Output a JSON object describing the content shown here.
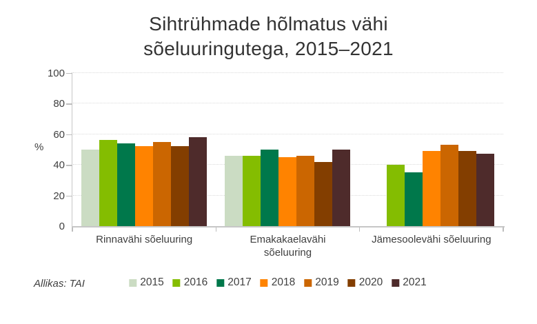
{
  "header": {
    "title_line1": "Sihtrühmade hõlmatus vähi",
    "title_line2": "sõeluuringutega, 2015–2021"
  },
  "source": "Allikas: TAI",
  "x_labels": [
    "Rinnavähi sõeluuring",
    "Emakakaelavähi\nsõeluuring",
    "Jämesoolevähi sõeluuring"
  ],
  "chart_data": {
    "type": "bar",
    "title": "Sihtrühmade hõlmatus vähi sõeluuringutega, 2015–2021",
    "xlabel": "",
    "ylabel": "%",
    "ylim": [
      0,
      100
    ],
    "yticks": [
      0,
      20,
      40,
      60,
      80,
      100
    ],
    "grid": "horizontal-dotted",
    "legend_position": "bottom",
    "categories": [
      "Rinnavähi sõeluuring",
      "Emakakaelavähi sõeluuring",
      "Jämesoolevähi sõeluuring"
    ],
    "series": [
      {
        "name": "2015",
        "color": "#CBDCC3",
        "values": [
          50,
          46,
          null
        ]
      },
      {
        "name": "2016",
        "color": "#84BD01",
        "values": [
          56,
          46,
          40
        ]
      },
      {
        "name": "2017",
        "color": "#00784B",
        "values": [
          54,
          50,
          35
        ]
      },
      {
        "name": "2018",
        "color": "#FF8300",
        "values": [
          52,
          45,
          49
        ]
      },
      {
        "name": "2019",
        "color": "#CB6601",
        "values": [
          55,
          46,
          53
        ]
      },
      {
        "name": "2020",
        "color": "#833E00",
        "values": [
          52,
          42,
          49
        ]
      },
      {
        "name": "2021",
        "color": "#4E2B2B",
        "values": [
          58,
          50,
          47
        ]
      }
    ]
  },
  "axis_colors": {
    "axis_line": "#c6c6c6",
    "grid_line": "#dadada",
    "text": "#3f3f3f"
  }
}
